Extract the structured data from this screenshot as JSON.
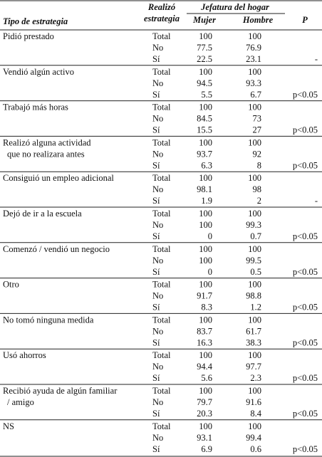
{
  "header": {
    "strategy": "Tipo de estrategia",
    "performed": [
      "Realizó",
      "estrategia"
    ],
    "household": "Jefatura del hogar",
    "female": "Mujer",
    "male": "Hombre",
    "p": "P"
  },
  "groups": [
    {
      "label": [
        "Pidió prestado"
      ],
      "rows": [
        {
          "answer": "Total",
          "female": 100,
          "male": 100
        },
        {
          "answer": "No",
          "female": 77.5,
          "male": 76.9
        },
        {
          "answer": "Sí",
          "female": 22.5,
          "male": 23.1
        }
      ],
      "p": "-"
    },
    {
      "label": [
        "Vendió algún activo"
      ],
      "rows": [
        {
          "answer": "Total",
          "female": 100,
          "male": 100
        },
        {
          "answer": "No",
          "female": 94.5,
          "male": 93.3
        },
        {
          "answer": "Sí",
          "female": 5.5,
          "male": 6.7
        }
      ],
      "p": "p<0.05"
    },
    {
      "label": [
        "Trabajó más horas"
      ],
      "rows": [
        {
          "answer": "Total",
          "female": 100,
          "male": 100
        },
        {
          "answer": "No",
          "female": 84.5,
          "male": 73
        },
        {
          "answer": "Sí",
          "female": 15.5,
          "male": 27
        }
      ],
      "p": "p<0.05"
    },
    {
      "label": [
        "Realizó alguna actividad",
        "que no realizara antes"
      ],
      "rows": [
        {
          "answer": "Total",
          "female": 100,
          "male": 100
        },
        {
          "answer": "No",
          "female": 93.7,
          "male": 92
        },
        {
          "answer": "Sí",
          "female": 6.3,
          "male": 8
        }
      ],
      "p": "p<0.05"
    },
    {
      "label": [
        "Consiguió un empleo adicional"
      ],
      "rows": [
        {
          "answer": "Total",
          "female": 100,
          "male": 100
        },
        {
          "answer": "No",
          "female": 98.1,
          "male": 98
        },
        {
          "answer": "Sí",
          "female": 1.9,
          "male": 2
        }
      ],
      "p": "-"
    },
    {
      "label": [
        "Dejó de ir a la escuela"
      ],
      "rows": [
        {
          "answer": "Total",
          "female": 100,
          "male": 100
        },
        {
          "answer": "No",
          "female": 100,
          "male": 99.3
        },
        {
          "answer": "Sí",
          "female": 0,
          "male": 0.7
        }
      ],
      "p": "p<0.05"
    },
    {
      "label": [
        "Comenzó / vendió un negocio"
      ],
      "rows": [
        {
          "answer": "Total",
          "female": 100,
          "male": 100
        },
        {
          "answer": "No",
          "female": 100,
          "male": 99.5
        },
        {
          "answer": "Sí",
          "female": 0,
          "male": 0.5
        }
      ],
      "p": "p<0.05"
    },
    {
      "label": [
        "Otro"
      ],
      "rows": [
        {
          "answer": "Total",
          "female": 100,
          "male": 100
        },
        {
          "answer": "No",
          "female": 91.7,
          "male": 98.8
        },
        {
          "answer": "Sí",
          "female": 8.3,
          "male": 1.2
        }
      ],
      "p": "p<0.05"
    },
    {
      "label": [
        "No tomó ninguna medida"
      ],
      "rows": [
        {
          "answer": "Total",
          "female": 100,
          "male": 100
        },
        {
          "answer": "No",
          "female": 83.7,
          "male": 61.7
        },
        {
          "answer": "Sí",
          "female": 16.3,
          "male": 38.3
        }
      ],
      "p": "p<0.05"
    },
    {
      "label": [
        "Usó ahorros"
      ],
      "rows": [
        {
          "answer": "Total",
          "female": 100,
          "male": 100
        },
        {
          "answer": "No",
          "female": 94.4,
          "male": 97.7
        },
        {
          "answer": "Sí",
          "female": 5.6,
          "male": 2.3
        }
      ],
      "p": "p<0.05"
    },
    {
      "label": [
        "Recibió ayuda de algún familiar",
        "/ amigo"
      ],
      "rows": [
        {
          "answer": "Total",
          "female": 100,
          "male": 100
        },
        {
          "answer": "No",
          "female": 79.7,
          "male": 91.6
        },
        {
          "answer": "Sí",
          "female": 20.3,
          "male": 8.4
        }
      ],
      "p": "p<0.05"
    },
    {
      "label": [
        "NS"
      ],
      "rows": [
        {
          "answer": "Total",
          "female": 100,
          "male": 100
        },
        {
          "answer": "No",
          "female": 93.1,
          "male": 99.4
        },
        {
          "answer": "Sí",
          "female": 6.9,
          "male": 0.6
        }
      ],
      "p": "p<0.05"
    }
  ]
}
